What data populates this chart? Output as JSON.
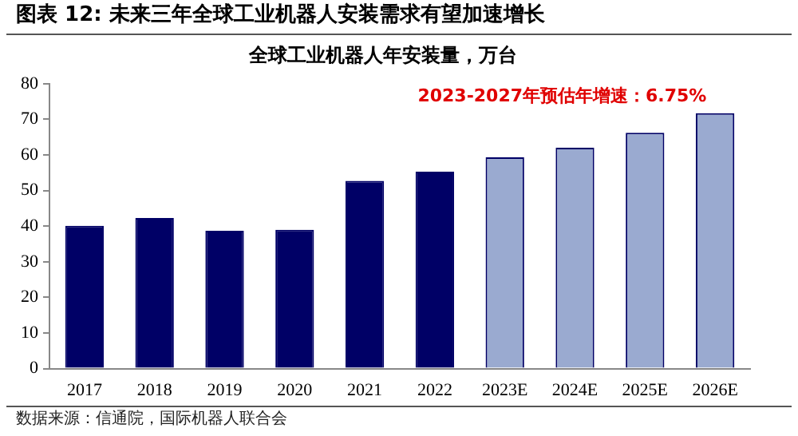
{
  "chart_data": {
    "type": "bar",
    "title": "图表 12:  未来三年全球工业机器人安装需求有望加速增长",
    "subtitle": "全球工业机器人年安装量，万台",
    "categories": [
      "2017",
      "2018",
      "2019",
      "2020",
      "2021",
      "2022",
      "2023E",
      "2024E",
      "2025E",
      "2026E"
    ],
    "values": [
      40.1,
      42.3,
      38.7,
      39.0,
      52.7,
      55.3,
      59.3,
      62.0,
      66.2,
      71.7
    ],
    "colors": [
      "#000066",
      "#000066",
      "#000066",
      "#000066",
      "#000066",
      "#000066",
      "#9aaad0",
      "#9aaad0",
      "#9aaad0",
      "#9aaad0"
    ],
    "ylim": [
      0,
      80
    ],
    "yticks": [
      0,
      10,
      20,
      30,
      40,
      50,
      60,
      70,
      80
    ],
    "grid": false,
    "legend": false,
    "annotations": [
      "2023-2027年预估年增速：6.75%",
      "数据来源：信通院，国际机器人联合会"
    ]
  }
}
